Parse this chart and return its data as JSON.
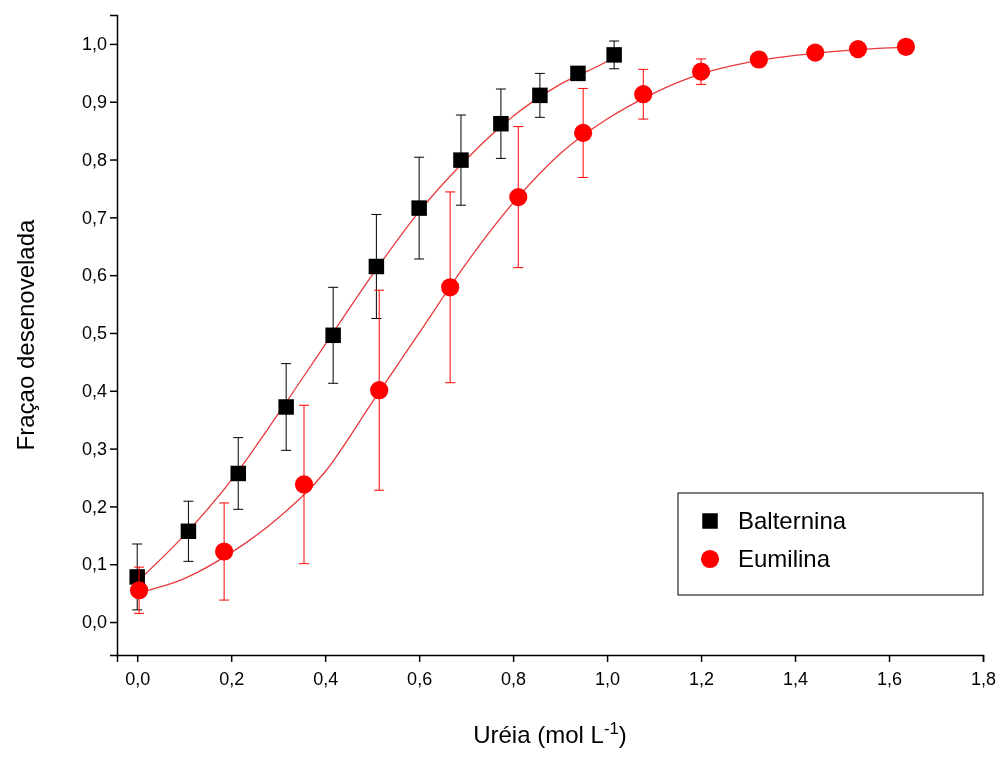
{
  "chart_data": {
    "type": "scatter",
    "xlabel": "Uréia (mol L$^{-1}$)",
    "ylabel": "Fraçao desenovelada",
    "xlim": [
      -0.043,
      1.8
    ],
    "ylim": [
      -0.057,
      1.05
    ],
    "xticks": [
      {
        "value": 0,
        "label": "0,0"
      },
      {
        "value": 0.2,
        "label": "0,2"
      },
      {
        "value": 0.4,
        "label": "0,4"
      },
      {
        "value": 0.6,
        "label": "0,6"
      },
      {
        "value": 0.8,
        "label": "0,8"
      },
      {
        "value": 1,
        "label": "1,0"
      },
      {
        "value": 1.2,
        "label": "1,2"
      },
      {
        "value": 1.4,
        "label": "1,4"
      },
      {
        "value": 1.6,
        "label": "1,6"
      },
      {
        "value": 1.8,
        "label": "1,8"
      }
    ],
    "yticks": [
      {
        "value": 0,
        "label": "0,0"
      },
      {
        "value": 0.1,
        "label": "0,1"
      },
      {
        "value": 0.2,
        "label": "0,2"
      },
      {
        "value": 0.3,
        "label": "0,3"
      },
      {
        "value": 0.4,
        "label": "0,4"
      },
      {
        "value": 0.5,
        "label": "0,5"
      },
      {
        "value": 0.6,
        "label": "0,6"
      },
      {
        "value": 0.7,
        "label": "0,7"
      },
      {
        "value": 0.8,
        "label": "0,8"
      },
      {
        "value": 0.9,
        "label": "0,9"
      },
      {
        "value": 1,
        "label": "1,0"
      }
    ],
    "grid": false,
    "legend": "bottom right",
    "series": [
      {
        "type": "line",
        "color": "#e8393b",
        "marker": "none",
        "x": [
          0,
          0.1,
          0.2,
          0.3,
          0.4,
          0.5,
          0.6,
          0.7,
          0.8,
          0.9,
          1.0,
          1.02
        ],
        "values": [
          0.07,
          0.15,
          0.245,
          0.36,
          0.48,
          0.6,
          0.71,
          0.8,
          0.875,
          0.93,
          0.97,
          0.98
        ]
      },
      {
        "type": "line",
        "color": "#e8393b",
        "marker": "none",
        "x": [
          0,
          0.1,
          0.2,
          0.3,
          0.4,
          0.5,
          0.6,
          0.7,
          0.8,
          0.9,
          1.0,
          1.1,
          1.2,
          1.3,
          1.4,
          1.5,
          1.6,
          1.64
        ],
        "values": [
          0.05,
          0.075,
          0.12,
          0.18,
          0.26,
          0.38,
          0.5,
          0.62,
          0.725,
          0.81,
          0.87,
          0.915,
          0.948,
          0.968,
          0.98,
          0.988,
          0.993,
          0.994
        ]
      },
      {
        "name": "Balternina",
        "color": "#000000",
        "marker": "square",
        "x": [
          0,
          0.109,
          0.215,
          0.317,
          0.417,
          0.509,
          0.6,
          0.689,
          0.774,
          0.857,
          0.938,
          1.015
        ],
        "values": [
          0.078,
          0.157,
          0.257,
          0.372,
          0.496,
          0.615,
          0.716,
          0.799,
          0.862,
          0.911,
          0.949,
          0.981
        ],
        "errors": [
          0.057,
          0.052,
          0.062,
          0.075,
          0.083,
          0.09,
          0.088,
          0.078,
          0.06,
          0.038,
          null,
          0.024
        ]
      },
      {
        "name": "Eumilina",
        "color": "#ff0000",
        "marker": "circle",
        "x": [
          0.004,
          0.185,
          0.355,
          0.515,
          0.666,
          0.811,
          0.949,
          1.077,
          1.2,
          1.323,
          1.443,
          1.534,
          1.636
        ],
        "values": [
          0.055,
          0.122,
          0.238,
          0.401,
          0.579,
          0.735,
          0.846,
          0.913,
          0.952,
          0.973,
          0.985,
          0.991,
          0.995
        ],
        "errors": [
          0.04,
          0.084,
          0.137,
          0.173,
          0.165,
          0.122,
          0.077,
          0.043,
          0.022,
          0.012,
          null,
          null,
          null
        ]
      }
    ]
  }
}
